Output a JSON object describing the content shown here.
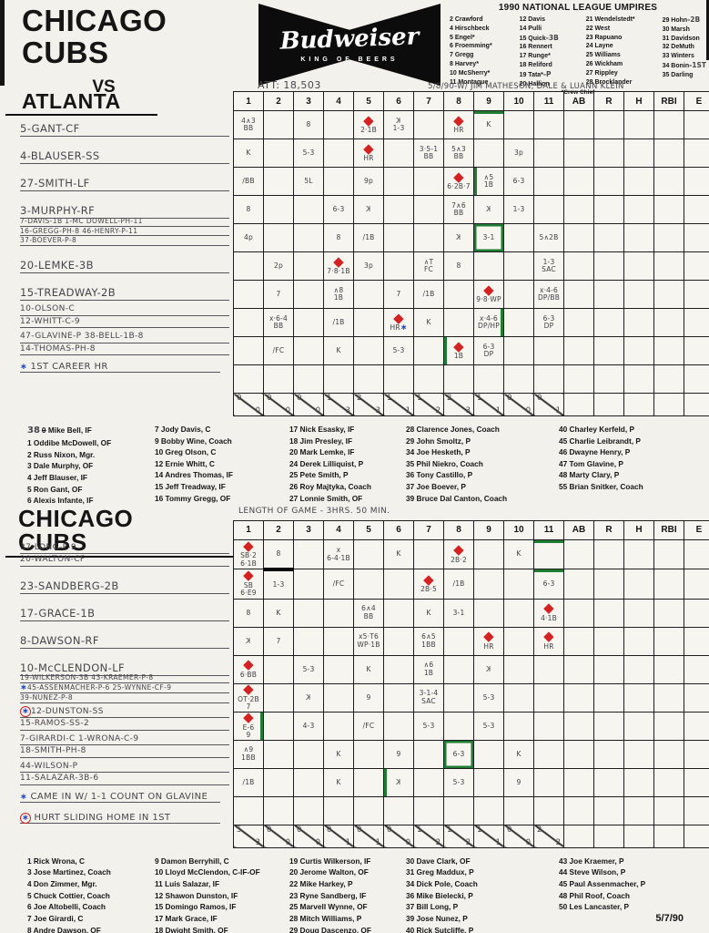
{
  "header": {
    "title": "CHICAGO CUBS",
    "vs": "VS",
    "bud": {
      "name": "Budweiser",
      "tag": "KING OF BEERS"
    },
    "attendance": "ATT: 18,503",
    "scorer_note": "5/8/90-W/ JIM MATHESON, DALE & LUANN KLEIN",
    "umpires": {
      "title": "1990 NATIONAL LEAGUE UMPIRES",
      "footnote": "*Crew Chief",
      "columns": [
        [
          "2 Crawford",
          "4 Hirschbeck",
          "5 Engel*",
          "6 Froemming*",
          "7 Gregg",
          "8 Harvey*",
          "10 McSherry*",
          "11 Montague"
        ],
        [
          "12 Davis",
          "14 Pulli",
          {
            "t": "15 Quick",
            "h": "-3B"
          },
          "16 Rennert",
          "17 Runge*",
          "18 Reliford",
          {
            "t": "19 Tata*",
            "h": "-P"
          },
          "20 Hallion"
        ],
        [
          "21 Wendelstedt*",
          "22 West",
          "23 Rapuano",
          "24 Layne",
          "25 Williams",
          "26 Wickham",
          "27 Rippley",
          "28 Brocklander"
        ],
        [
          {
            "t": "29 Hohn",
            "h": "-2B"
          },
          "30 Marsh",
          "31 Davidson",
          "32 DeMuth",
          "33 Winters",
          {
            "t": "34 Bonin",
            "h": "-1ST"
          },
          "35 Darling"
        ]
      ]
    }
  },
  "grid_columns": [
    "1",
    "2",
    "3",
    "4",
    "5",
    "6",
    "7",
    "8",
    "9",
    "10",
    "11",
    "AB",
    "R",
    "H",
    "RBI",
    "E"
  ],
  "atlanta": {
    "team": "ATLANTA",
    "slots": [
      [
        "5-GANT-CF"
      ],
      [
        "4-BLAUSER-SS"
      ],
      [
        "27-SMITH-LF"
      ],
      [
        "3-MURPHY-RF"
      ],
      [
        "7-DAVIS-1B   1-MC DOWELL-PH-11",
        "16-GREGG-PH-8   46-HENRY-P-11",
        "37-BOEVER-P-8"
      ],
      [
        "20-LEMKE-3B"
      ],
      [
        "15-TREADWAY-2B"
      ],
      [
        "10-OLSON-C",
        "12-WHITT-C-9"
      ],
      [
        "47-GLAVINE-P   38-BELL-1B-8",
        "14-THOMAS-PH-8"
      ]
    ],
    "notes": [
      "✱ 1ST CAREER HR"
    ],
    "rows": [
      [
        "4∧3|BB",
        "",
        "8",
        "",
        "◆|2·1B",
        "{K}|1-3",
        "",
        "◆|HR",
        {
          "t": "K",
          "g": "top"
        },
        "",
        ""
      ],
      [
        "K",
        "",
        "5-3",
        "",
        "◆|HR",
        "",
        "3·5-1|BB",
        "5∧3|BB",
        "",
        "3p",
        ""
      ],
      [
        "/BB",
        "",
        "5L",
        "",
        "9p",
        "",
        "",
        "◆|6·2B·7",
        {
          "t": "∧5|1B",
          "g": "left"
        },
        "6-3",
        ""
      ],
      [
        "8",
        "",
        "",
        "6-3",
        "{K}",
        "",
        "",
        "7∧6|BB",
        "{K}",
        "1-3",
        ""
      ],
      [
        "4p",
        "",
        "",
        "8",
        "/1B",
        "",
        "",
        "{K}",
        {
          "t": "3-1",
          "g": "box"
        },
        "",
        "5∧2B"
      ],
      [
        "",
        "2p",
        "",
        "◆|7·8·1B",
        "3p",
        "",
        "∧T|FC",
        "8",
        "",
        "",
        "1-3|SAC"
      ],
      [
        "",
        "7",
        "",
        "∧8|1B",
        "",
        "7",
        "/1B",
        "",
        "◆|9·8·WP",
        "",
        "x·4-6|DP/BB"
      ],
      [
        "",
        "x·6-4|BB",
        "",
        "/1B",
        "",
        "◆|HR✱",
        "K",
        "",
        {
          "t": "x·4-6|DP/HP",
          "g": "right"
        },
        "",
        "6-3|DP"
      ],
      [
        "",
        "/FC",
        "",
        "K",
        "",
        "5-3",
        "",
        {
          "t": "◆|1B",
          "g": "left"
        },
        "6-3|DP",
        "",
        ""
      ],
      [
        "",
        "",
        "",
        "",
        "",
        "",
        "",
        "",
        "",
        "",
        ""
      ]
    ],
    "totals": [
      "0/0",
      "0/0",
      "0/0",
      "1/3",
      "2/3",
      "1/1",
      "1/2",
      "2/3",
      "1/1",
      "0/0",
      "0/1"
    ]
  },
  "cubs": {
    "team": "CHICAGO CUBS",
    "game_note": "LENGTH OF GAME - 3HRS. 50 MIN.",
    "slots": [
      [
        "37-LONG-P-9",
        "20-WALTON-CF"
      ],
      [
        "23-SANDBERG-2B"
      ],
      [
        "17-GRACE-1B"
      ],
      [
        "8-DAWSON-RF"
      ],
      [
        "10-McCLENDON-LF"
      ],
      [
        "19-WILKERSON-3B  43-KRAEMER-P-8",
        "✱45-ASSENMACHER-P-6  25-WYNNE-CF-9",
        "39-NUNEZ-P-8"
      ],
      [
        "⊛12-DUNSTON-SS",
        "15-RAMOS-SS-2"
      ],
      [
        "7-GIRARDI-C   1-WRONA-C-9",
        "18-SMITH-PH-8"
      ],
      [
        "44-WILSON-P",
        "11-SALAZAR-3B-6"
      ]
    ],
    "notes": [
      "✱ CAME IN W/ 1-1 COUNT ON GLAVINE",
      "⊛ HURT SLIDING HOME IN 1ST"
    ],
    "rows": [
      [
        "◆|SB·2|6·1B",
        {
          "t": "8",
          "g": "sub"
        },
        "",
        "x|6-4·1B",
        "",
        "K",
        "",
        "◆|2B·2",
        "",
        "K",
        {
          "t": "",
          "g": "top"
        }
      ],
      [
        "◆|SB|6·E9",
        "1-3",
        "",
        "/FC",
        "",
        "",
        "◆|2B·5",
        "/1B",
        "",
        "",
        {
          "t": "6-3",
          "g": "top"
        }
      ],
      [
        "8",
        "K",
        "",
        "",
        "6∧4|BB",
        "",
        "K",
        "3-1",
        "",
        "",
        "◆|4·1B"
      ],
      [
        "{K}",
        "7",
        "",
        "",
        "x5·T6|WP·1B",
        "",
        "6∧5|1BB",
        "",
        "◆|HR",
        "",
        "◆|HR"
      ],
      [
        "◆|6·BB",
        "",
        "5-3",
        "",
        "K",
        "",
        "∧6|1B",
        "",
        "{K}",
        "",
        ""
      ],
      [
        "◆|OT·2B|7",
        "",
        "{K}",
        "",
        "9",
        "",
        "3-1-4|SAC",
        "",
        "5-3",
        "",
        ""
      ],
      [
        {
          "t": "◆|E-6|9",
          "g": "right"
        },
        "",
        "4-3",
        "",
        "/FC",
        "",
        "5-3",
        "",
        "5-3",
        "",
        ""
      ],
      [
        "∧9|1BB",
        "",
        "",
        "K",
        "",
        "9",
        "",
        {
          "t": "6-3",
          "g": "box"
        },
        "",
        "K",
        ""
      ],
      [
        "/1B",
        "",
        "",
        "K",
        "",
        {
          "t": "{K}",
          "g": "left"
        },
        "",
        "5-3",
        "",
        "9",
        ""
      ],
      [
        "",
        "",
        "",
        "",
        "",
        "",
        "",
        "",
        "",
        "",
        ""
      ]
    ],
    "totals": [
      "5/3",
      "0/0",
      "0/0",
      "0/1",
      "0/1",
      "0/0",
      "1/2",
      "1/2",
      "1/1",
      "0/0",
      "2/2"
    ]
  },
  "atlanta_roster": {
    "columns": [
      [
        {
          "hand": "38",
          "struck": "0",
          "t": " Mike Bell, IF"
        },
        "1 Oddibe McDowell, OF",
        "2 Russ Nixon, Mgr.",
        "3 Dale Murphy, OF",
        "4 Jeff Blauser, IF",
        "5 Ron Gant, OF",
        "6 Alexis Infante, IF"
      ],
      [
        "7 Jody Davis, C",
        "9 Bobby Wine, Coach",
        "10 Greg Olson, C",
        "12 Ernie Whitt, C",
        "14 Andres Thomas, IF",
        "15 Jeff Treadway, IF",
        "16 Tommy Gregg, OF"
      ],
      [
        "17 Nick Esasky, IF",
        "18 Jim Presley, IF",
        "20 Mark Lemke, IF",
        "24 Derek Lilliquist, P",
        "25 Pete Smith, P",
        "26 Roy Majtyka, Coach",
        "27 Lonnie Smith, OF"
      ],
      [
        "28 Clarence Jones, Coach",
        "29 John Smoltz, P",
        "34 Joe Hesketh, P",
        "35 Phil Niekro, Coach",
        "36 Tony Castillo, P",
        "37 Joe Boever, P",
        "39 Bruce Dal Canton, Coach"
      ],
      [
        "40 Charley Kerfeld, P",
        "45 Charlie Leibrandt, P",
        "46 Dwayne Henry, P",
        "47 Tom Glavine, P",
        "48 Marty Clary, P",
        "55 Brian Snitker, Coach"
      ]
    ]
  },
  "cubs_roster": {
    "columns": [
      [
        "1 Rick Wrona, C",
        "3 Jose Martinez, Coach",
        "4 Don Zimmer, Mgr.",
        "5 Chuck Cottier, Coach",
        "6 Joe Altobelli, Coach",
        "7 Joe Girardi, C",
        "8 Andre Dawson, OF"
      ],
      [
        "9 Damon Berryhill, C",
        "10 Lloyd McClendon, C-IF-OF",
        "11 Luis Salazar, IF",
        "12 Shawon Dunston, IF",
        "15 Domingo Ramos, IF",
        "17 Mark Grace, IF",
        "18 Dwight Smith, OF"
      ],
      [
        "19 Curtis Wilkerson, IF",
        "20 Jerome Walton, OF",
        "22 Mike Harkey, P",
        "23 Ryne Sandberg, IF",
        "25 Marvell Wynne, OF",
        "28 Mitch Williams, P",
        "29 Doug Dascenzo, OF"
      ],
      [
        "30 Dave Clark, OF",
        "31 Greg Maddux, P",
        "34 Dick Pole, Coach",
        "36 Mike Bielecki, P",
        "37 Bill Long, P",
        "39 Jose Nunez, P",
        "40 Rick Sutcliffe, P"
      ],
      [
        "43 Joe Kraemer, P",
        "44 Steve Wilson, P",
        "45 Paul Assenmacher, P",
        "48 Phil Roof, Coach",
        "50 Les Lancaster, P"
      ]
    ]
  },
  "colors": {
    "run_diamond": "#d42222",
    "pitching_change": "#1e7c33",
    "note_star": "#2547c8"
  },
  "date": "5/7/90"
}
